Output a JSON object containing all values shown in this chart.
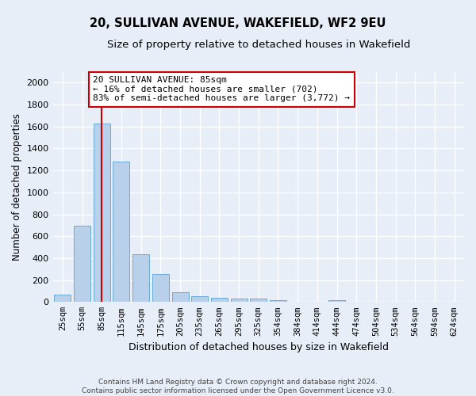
{
  "title": "20, SULLIVAN AVENUE, WAKEFIELD, WF2 9EU",
  "subtitle": "Size of property relative to detached houses in Wakefield",
  "xlabel": "Distribution of detached houses by size in Wakefield",
  "ylabel": "Number of detached properties",
  "bar_color": "#b8d0ea",
  "bar_edge_color": "#6aaad4",
  "categories": [
    "25sqm",
    "55sqm",
    "85sqm",
    "115sqm",
    "145sqm",
    "175sqm",
    "205sqm",
    "235sqm",
    "265sqm",
    "295sqm",
    "325sqm",
    "354sqm",
    "384sqm",
    "414sqm",
    "444sqm",
    "474sqm",
    "504sqm",
    "534sqm",
    "564sqm",
    "594sqm",
    "624sqm"
  ],
  "values": [
    65,
    695,
    1630,
    1280,
    435,
    255,
    90,
    55,
    40,
    28,
    28,
    14,
    0,
    0,
    18,
    0,
    0,
    0,
    0,
    0,
    0
  ],
  "ylim": [
    0,
    2100
  ],
  "yticks": [
    0,
    200,
    400,
    600,
    800,
    1000,
    1200,
    1400,
    1600,
    1800,
    2000
  ],
  "vline_x": 2,
  "vline_color": "#cc0000",
  "annotation_title": "20 SULLIVAN AVENUE: 85sqm",
  "annotation_line1": "← 16% of detached houses are smaller (702)",
  "annotation_line2": "83% of semi-detached houses are larger (3,772) →",
  "annotation_box_color": "#cc0000",
  "footer_line1": "Contains HM Land Registry data © Crown copyright and database right 2024.",
  "footer_line2": "Contains public sector information licensed under the Open Government Licence v3.0.",
  "background_color": "#e8eef8",
  "plot_bg_color": "#e8eef8",
  "grid_color": "#ffffff",
  "title_fontsize": 10.5,
  "subtitle_fontsize": 9.5,
  "xlabel_fontsize": 9,
  "ylabel_fontsize": 8.5
}
